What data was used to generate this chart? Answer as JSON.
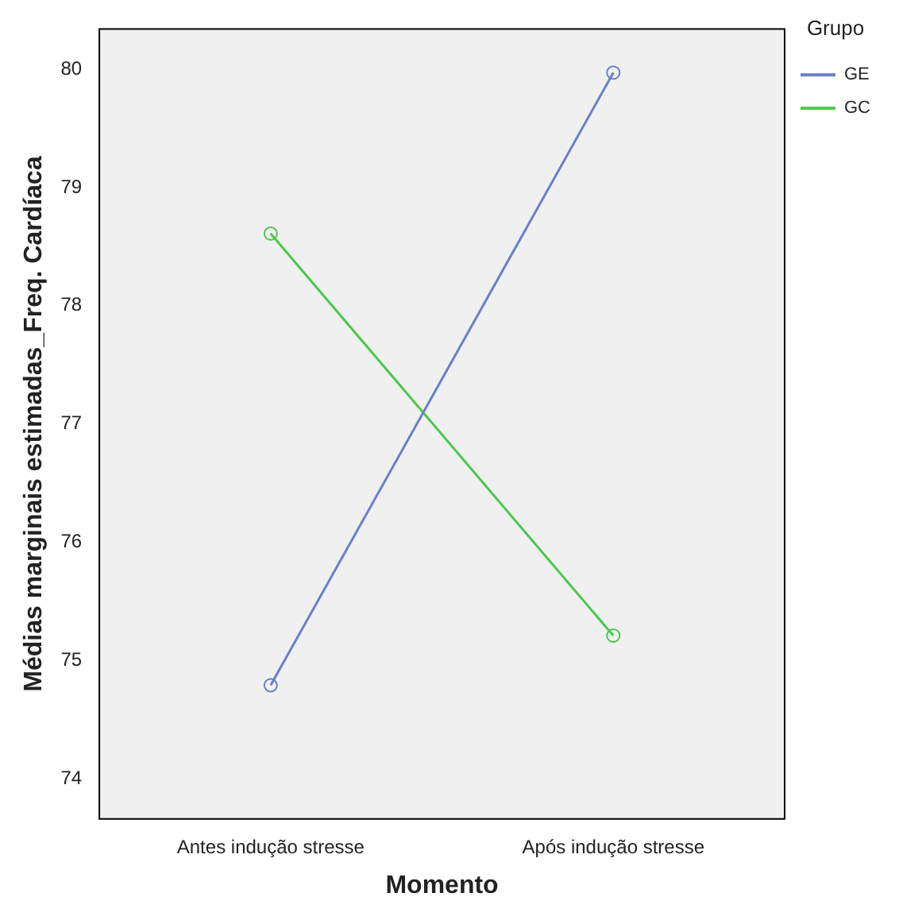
{
  "chart_data": {
    "type": "line",
    "xlabel": "Momento",
    "ylabel": "Médias marginais estimadas_Freq. Cardíaca",
    "legend_title": "Grupo",
    "categories": [
      "Antes indução stresse",
      "Após indução stresse"
    ],
    "series": [
      {
        "name": "GE",
        "color": "#6a7fc8",
        "values": [
          74.79,
          79.97
        ]
      },
      {
        "name": "GC",
        "color": "#4cc84c",
        "values": [
          78.61,
          75.21
        ]
      }
    ],
    "ylim": [
      73.66,
      80.34
    ],
    "yticks": [
      74,
      75,
      76,
      77,
      78,
      79,
      80
    ],
    "grid": false,
    "legend": "right",
    "marker": "circle",
    "line_style": "solid"
  }
}
